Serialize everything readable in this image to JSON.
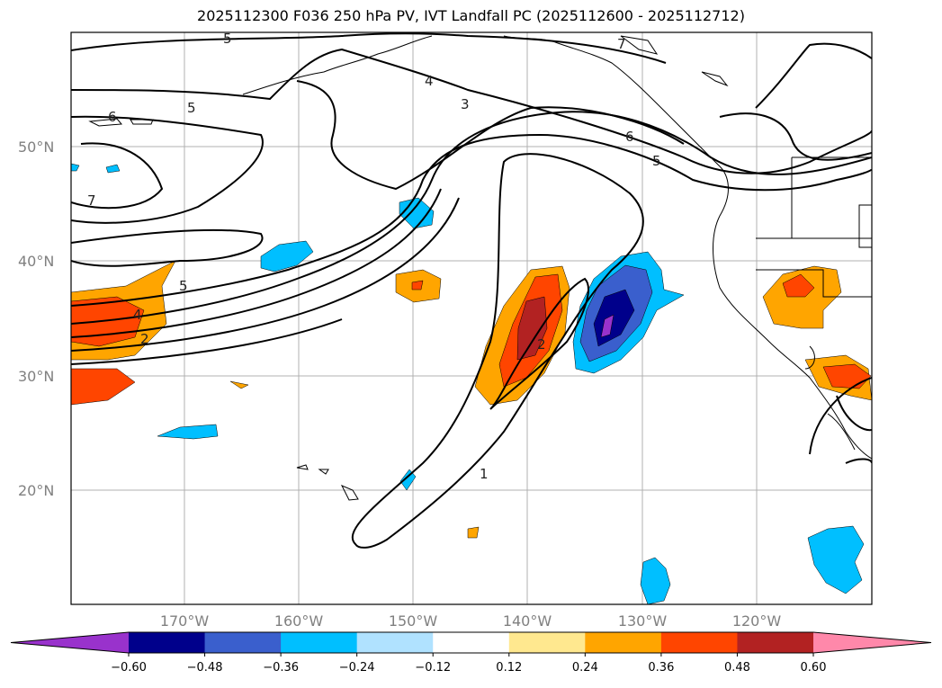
{
  "title": "2025112300 F036 250 hPa PV, IVT Landfall PC (2025112600 - 2025112712)",
  "map": {
    "lat_labels": [
      "50°N",
      "40°N",
      "30°N",
      "20°N"
    ],
    "lon_labels": [
      "170°W",
      "160°W",
      "150°W",
      "140°W",
      "130°W",
      "120°W"
    ],
    "contour_labels": [
      "5",
      "6",
      "5",
      "7",
      "4",
      "3",
      "6",
      "5",
      "7",
      "5",
      "4",
      "2",
      "2",
      "1"
    ]
  },
  "colorbar": {
    "ticks": [
      "−0.60",
      "−0.48",
      "−0.36",
      "−0.24",
      "−0.12",
      "0.12",
      "0.24",
      "0.36",
      "0.48",
      "0.60"
    ],
    "colors": [
      "#9932cc",
      "#00008b",
      "#3a5fcd",
      "#00bfff",
      "#b0e2ff",
      "#ffffff",
      "#ffe88f",
      "#ffa500",
      "#ff4500",
      "#b22222",
      "#ff88aa"
    ]
  }
}
